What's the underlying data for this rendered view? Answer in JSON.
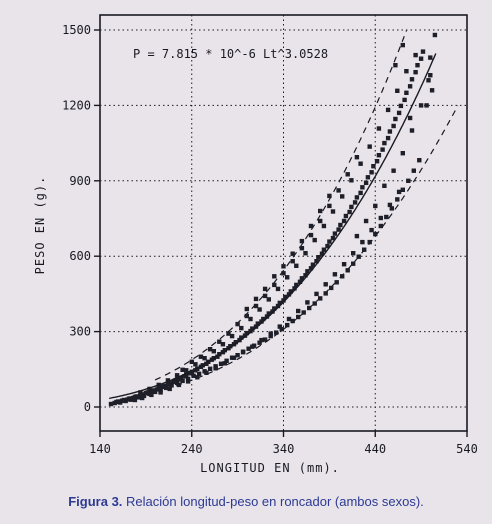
{
  "caption": {
    "label": "Figura 3.",
    "text": "Relación longitud-peso en roncador (ambos sexos)."
  },
  "chart_data": {
    "type": "scatter",
    "title": "",
    "equation": "P = 7.815 * 10^-6 Lt^3.0528",
    "xlabel": "LONGITUD EN (mm).",
    "ylabel": "PESO EN (g).",
    "xlim": [
      140,
      540
    ],
    "ylim": [
      0,
      1500
    ],
    "x_ticks": [
      "140",
      "240",
      "340",
      "440",
      "540"
    ],
    "y_ticks": [
      "0",
      "300",
      "600",
      "900",
      "1200",
      "1500"
    ],
    "grid": true,
    "grid_style": "dotted",
    "fit_curve": {
      "a": 7.815e-06,
      "b": 3.0528,
      "x_range": [
        150,
        507
      ]
    },
    "confidence_bands": {
      "upper": {
        "a": 7.815e-06,
        "b": 3.0528,
        "factor": 1.3,
        "x_range": [
          200,
          490
        ]
      },
      "lower": {
        "a": 7.815e-06,
        "b": 3.0528,
        "factor": 0.74,
        "x_range": [
          200,
          530
        ]
      }
    },
    "points": [
      [
        152,
        12
      ],
      [
        156,
        16
      ],
      [
        158,
        20
      ],
      [
        160,
        22
      ],
      [
        162,
        18
      ],
      [
        164,
        25
      ],
      [
        166,
        28
      ],
      [
        168,
        24
      ],
      [
        170,
        30
      ],
      [
        172,
        34
      ],
      [
        174,
        29
      ],
      [
        176,
        36
      ],
      [
        178,
        40
      ],
      [
        180,
        42
      ],
      [
        182,
        38
      ],
      [
        184,
        46
      ],
      [
        186,
        50
      ],
      [
        188,
        44
      ],
      [
        190,
        55
      ],
      [
        192,
        58
      ],
      [
        194,
        52
      ],
      [
        196,
        62
      ],
      [
        198,
        66
      ],
      [
        200,
        60
      ],
      [
        202,
        70
      ],
      [
        204,
        74
      ],
      [
        206,
        68
      ],
      [
        208,
        80
      ],
      [
        210,
        84
      ],
      [
        212,
        76
      ],
      [
        214,
        90
      ],
      [
        216,
        94
      ],
      [
        218,
        86
      ],
      [
        220,
        100
      ],
      [
        222,
        105
      ],
      [
        224,
        96
      ],
      [
        226,
        110
      ],
      [
        228,
        116
      ],
      [
        230,
        104
      ],
      [
        232,
        122
      ],
      [
        234,
        128
      ],
      [
        236,
        112
      ],
      [
        238,
        134
      ],
      [
        240,
        140
      ],
      [
        242,
        124
      ],
      [
        244,
        146
      ],
      [
        246,
        152
      ],
      [
        248,
        132
      ],
      [
        250,
        160
      ],
      [
        252,
        166
      ],
      [
        254,
        142
      ],
      [
        256,
        172
      ],
      [
        258,
        180
      ],
      [
        260,
        152
      ],
      [
        262,
        188
      ],
      [
        264,
        194
      ],
      [
        266,
        162
      ],
      [
        268,
        200
      ],
      [
        270,
        210
      ],
      [
        272,
        172
      ],
      [
        274,
        218
      ],
      [
        276,
        226
      ],
      [
        278,
        184
      ],
      [
        280,
        234
      ],
      [
        282,
        242
      ],
      [
        284,
        196
      ],
      [
        286,
        250
      ],
      [
        288,
        258
      ],
      [
        290,
        206
      ],
      [
        292,
        266
      ],
      [
        294,
        276
      ],
      [
        296,
        220
      ],
      [
        298,
        284
      ],
      [
        300,
        294
      ],
      [
        302,
        232
      ],
      [
        304,
        302
      ],
      [
        306,
        312
      ],
      [
        308,
        244
      ],
      [
        310,
        320
      ],
      [
        312,
        332
      ],
      [
        314,
        256
      ],
      [
        316,
        340
      ],
      [
        318,
        350
      ],
      [
        320,
        268
      ],
      [
        322,
        360
      ],
      [
        324,
        372
      ],
      [
        326,
        282
      ],
      [
        328,
        380
      ],
      [
        330,
        392
      ],
      [
        332,
        296
      ],
      [
        334,
        402
      ],
      [
        336,
        414
      ],
      [
        338,
        310
      ],
      [
        340,
        424
      ],
      [
        342,
        438
      ],
      [
        344,
        326
      ],
      [
        346,
        448
      ],
      [
        348,
        460
      ],
      [
        350,
        342
      ],
      [
        352,
        472
      ],
      [
        354,
        486
      ],
      [
        356,
        358
      ],
      [
        358,
        498
      ],
      [
        360,
        512
      ],
      [
        362,
        376
      ],
      [
        364,
        524
      ],
      [
        366,
        540
      ],
      [
        368,
        394
      ],
      [
        370,
        552
      ],
      [
        372,
        566
      ],
      [
        374,
        412
      ],
      [
        376,
        580
      ],
      [
        378,
        596
      ],
      [
        380,
        432
      ],
      [
        382,
        610
      ],
      [
        384,
        626
      ],
      [
        386,
        452
      ],
      [
        388,
        640
      ],
      [
        390,
        658
      ],
      [
        392,
        474
      ],
      [
        394,
        672
      ],
      [
        396,
        690
      ],
      [
        398,
        496
      ],
      [
        400,
        706
      ],
      [
        402,
        724
      ],
      [
        404,
        520
      ],
      [
        406,
        740
      ],
      [
        408,
        760
      ],
      [
        410,
        544
      ],
      [
        412,
        776
      ],
      [
        414,
        796
      ],
      [
        416,
        570
      ],
      [
        418,
        814
      ],
      [
        420,
        834
      ],
      [
        422,
        598
      ],
      [
        424,
        852
      ],
      [
        426,
        874
      ],
      [
        428,
        626
      ],
      [
        430,
        892
      ],
      [
        432,
        914
      ],
      [
        434,
        656
      ],
      [
        436,
        934
      ],
      [
        438,
        958
      ],
      [
        440,
        688
      ],
      [
        442,
        978
      ],
      [
        444,
        1002
      ],
      [
        446,
        720
      ],
      [
        448,
        1024
      ],
      [
        450,
        1050
      ],
      [
        452,
        756
      ],
      [
        454,
        1070
      ],
      [
        456,
        1096
      ],
      [
        458,
        790
      ],
      [
        460,
        1118
      ],
      [
        462,
        1146
      ],
      [
        464,
        826
      ],
      [
        466,
        1170
      ],
      [
        468,
        1198
      ],
      [
        470,
        864
      ],
      [
        472,
        1222
      ],
      [
        474,
        1250
      ],
      [
        476,
        900
      ],
      [
        478,
        1276
      ],
      [
        480,
        1304
      ],
      [
        482,
        940
      ],
      [
        484,
        1332
      ],
      [
        486,
        1360
      ],
      [
        488,
        982
      ],
      [
        490,
        1386
      ],
      [
        492,
        1414
      ],
      [
        178,
        28
      ],
      [
        186,
        36
      ],
      [
        196,
        48
      ],
      [
        206,
        58
      ],
      [
        216,
        72
      ],
      [
        226,
        88
      ],
      [
        236,
        102
      ],
      [
        246,
        118
      ],
      [
        256,
        136
      ],
      [
        266,
        154
      ],
      [
        276,
        174
      ],
      [
        286,
        196
      ],
      [
        296,
        218
      ],
      [
        306,
        240
      ],
      [
        316,
        266
      ],
      [
        326,
        292
      ],
      [
        336,
        320
      ],
      [
        346,
        350
      ],
      [
        356,
        382
      ],
      [
        366,
        416
      ],
      [
        376,
        450
      ],
      [
        386,
        488
      ],
      [
        396,
        528
      ],
      [
        406,
        568
      ],
      [
        416,
        612
      ],
      [
        426,
        656
      ],
      [
        436,
        704
      ],
      [
        446,
        752
      ],
      [
        456,
        804
      ],
      [
        466,
        856
      ],
      [
        184,
        58
      ],
      [
        194,
        72
      ],
      [
        204,
        88
      ],
      [
        214,
        106
      ],
      [
        224,
        126
      ],
      [
        234,
        146
      ],
      [
        244,
        170
      ],
      [
        254,
        194
      ],
      [
        264,
        222
      ],
      [
        274,
        250
      ],
      [
        284,
        282
      ],
      [
        294,
        314
      ],
      [
        304,
        350
      ],
      [
        314,
        388
      ],
      [
        324,
        428
      ],
      [
        334,
        470
      ],
      [
        344,
        516
      ],
      [
        354,
        562
      ],
      [
        364,
        612
      ],
      [
        374,
        664
      ],
      [
        384,
        720
      ],
      [
        394,
        778
      ],
      [
        404,
        838
      ],
      [
        414,
        902
      ],
      [
        424,
        968
      ],
      [
        434,
        1036
      ],
      [
        444,
        1108
      ],
      [
        454,
        1182
      ],
      [
        464,
        1258
      ],
      [
        474,
        1336
      ],
      [
        230,
        148
      ],
      [
        240,
        180
      ],
      [
        250,
        200
      ],
      [
        260,
        230
      ],
      [
        270,
        260
      ],
      [
        280,
        292
      ],
      [
        290,
        330
      ],
      [
        300,
        362
      ],
      [
        310,
        402
      ],
      [
        320,
        442
      ],
      [
        330,
        486
      ],
      [
        340,
        532
      ],
      [
        350,
        580
      ],
      [
        360,
        632
      ],
      [
        370,
        684
      ],
      [
        380,
        740
      ],
      [
        390,
        800
      ],
      [
        400,
        862
      ],
      [
        410,
        926
      ],
      [
        420,
        994
      ],
      [
        300,
        390
      ],
      [
        310,
        430
      ],
      [
        320,
        470
      ],
      [
        330,
        520
      ],
      [
        340,
        560
      ],
      [
        350,
        610
      ],
      [
        360,
        660
      ],
      [
        370,
        720
      ],
      [
        380,
        780
      ],
      [
        390,
        840
      ],
      [
        420,
        680
      ],
      [
        430,
        740
      ],
      [
        440,
        800
      ],
      [
        450,
        880
      ],
      [
        460,
        940
      ],
      [
        470,
        1010
      ],
      [
        480,
        1100
      ],
      [
        490,
        1200
      ],
      [
        498,
        1300
      ],
      [
        500,
        1390
      ],
      [
        484,
        1400
      ],
      [
        496,
        1200
      ],
      [
        502,
        1260
      ],
      [
        505,
        1480
      ],
      [
        470,
        1440
      ],
      [
        462,
        1360
      ],
      [
        478,
        1150
      ],
      [
        500,
        1320
      ]
    ]
  }
}
